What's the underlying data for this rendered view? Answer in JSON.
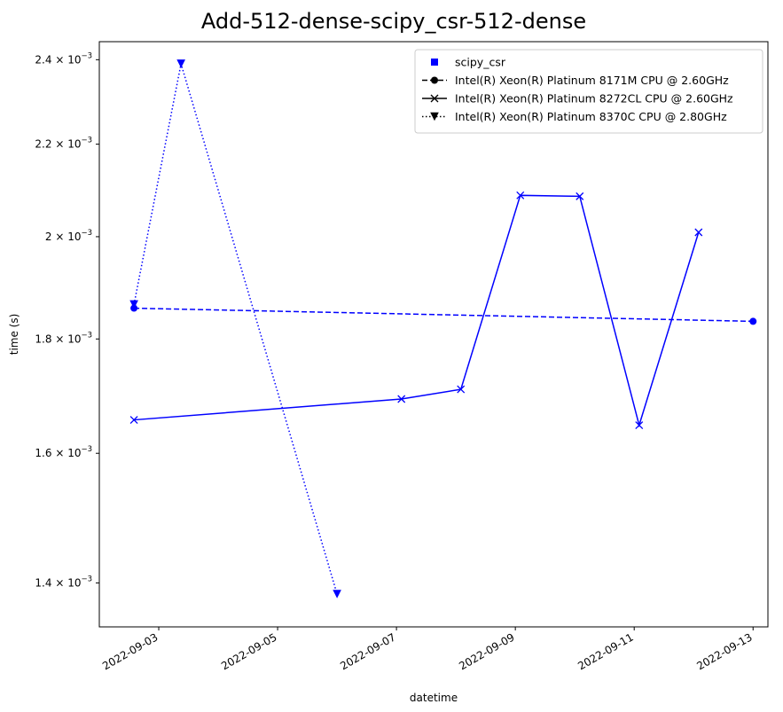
{
  "chart_data": {
    "type": "line",
    "title": "Add-512-dense-scipy_csr-512-dense",
    "xlabel": "datetime",
    "ylabel": "time (s)",
    "yscale": "log",
    "ylim": [
      0.001338,
      0.002445
    ],
    "xlim": [
      "2022-09-02T00:00",
      "2022-09-13T06:00"
    ],
    "x_ticks": [
      "2022-09-03",
      "2022-09-05",
      "2022-09-07",
      "2022-09-09",
      "2022-09-11",
      "2022-09-13"
    ],
    "y_ticks": [
      {
        "value": 0.0014,
        "mantissa": "1.4",
        "exp": "−3"
      },
      {
        "value": 0.0016,
        "mantissa": "1.6",
        "exp": "−3"
      },
      {
        "value": 0.0018,
        "mantissa": "1.8",
        "exp": "−3"
      },
      {
        "value": 0.002,
        "mantissa": "2",
        "exp": "−3"
      },
      {
        "value": 0.0022,
        "mantissa": "2.2",
        "exp": "−3"
      },
      {
        "value": 0.0024,
        "mantissa": "2.4",
        "exp": "−3"
      }
    ],
    "grid": false,
    "legend": {
      "placement": "top-right",
      "entries": [
        {
          "label": "scipy_csr",
          "marker": "square",
          "linestyle": "none"
        },
        {
          "label": "Intel(R) Xeon(R) Platinum 8171M CPU @ 2.60GHz",
          "marker": "circle",
          "linestyle": "dashed"
        },
        {
          "label": "Intel(R) Xeon(R) Platinum 8272CL CPU @ 2.60GHz",
          "marker": "x",
          "linestyle": "solid"
        },
        {
          "label": "Intel(R) Xeon(R) Platinum 8370C CPU @ 2.80GHz",
          "marker": "triangle-down",
          "linestyle": "dotted"
        }
      ]
    },
    "color": "#0000ff",
    "series": [
      {
        "name": "Intel(R) Xeon(R) Platinum 8171M CPU @ 2.60GHz",
        "marker": "circle",
        "linestyle": "dashed",
        "points": [
          {
            "x": "2022-09-02T14:00",
            "y": 0.001858
          },
          {
            "x": "2022-09-13T00:00",
            "y": 0.001833
          }
        ]
      },
      {
        "name": "Intel(R) Xeon(R) Platinum 8272CL CPU @ 2.60GHz",
        "marker": "x",
        "linestyle": "solid",
        "points": [
          {
            "x": "2022-09-02T14:00",
            "y": 0.001656
          },
          {
            "x": "2022-09-07T02:00",
            "y": 0.001692
          },
          {
            "x": "2022-09-08T02:00",
            "y": 0.001709
          },
          {
            "x": "2022-09-09T02:00",
            "y": 0.002087
          },
          {
            "x": "2022-09-10T02:00",
            "y": 0.002085
          },
          {
            "x": "2022-09-11T02:00",
            "y": 0.001647
          },
          {
            "x": "2022-09-12T02:00",
            "y": 0.002009
          }
        ]
      },
      {
        "name": "Intel(R) Xeon(R) Platinum 8370C CPU @ 2.80GHz",
        "marker": "triangle-down",
        "linestyle": "dotted",
        "points": [
          {
            "x": "2022-09-02T14:00",
            "y": 0.001865
          },
          {
            "x": "2022-09-03T09:00",
            "y": 0.00239
          },
          {
            "x": "2022-09-06T00:00",
            "y": 0.001384
          }
        ]
      }
    ]
  }
}
